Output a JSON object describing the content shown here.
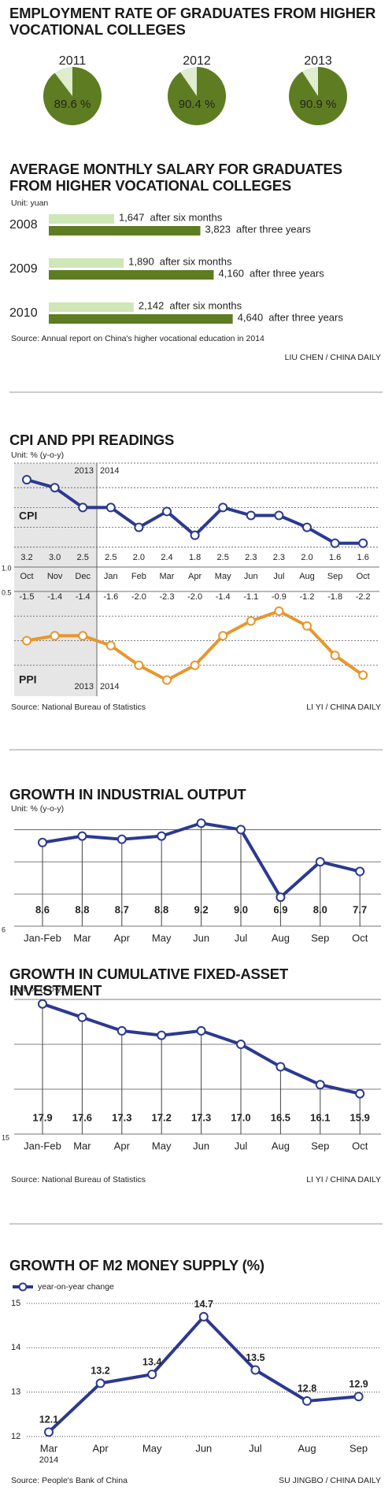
{
  "chart_data": [
    {
      "type": "pie",
      "title": "EMPLOYMENT RATE OF GRADUATES FROM HIGHER VOCATIONAL COLLEGES",
      "categories": [
        "2011",
        "2012",
        "2013"
      ],
      "values": [
        89.6,
        90.4,
        90.9
      ],
      "value_labels": [
        "89.6 %",
        "90.4 %",
        "90.9 %"
      ],
      "color": "#5e7d22",
      "rest_color": "#dfeccf"
    },
    {
      "type": "hbar",
      "title": "AVERAGE MONTHLY SALARY FOR GRADUATES FROM HIGHER VOCATIONAL COLLEGES",
      "unit": "Unit: yuan",
      "categories": [
        "2008",
        "2009",
        "2010"
      ],
      "series": [
        {
          "name": "after six months",
          "color": "#cfe6b6",
          "values": [
            1647,
            1890,
            2142
          ],
          "value_labels": [
            "1,647",
            "1,890",
            "2,142"
          ]
        },
        {
          "name": "after three years",
          "color": "#5e7d22",
          "values": [
            3823,
            4160,
            4640
          ],
          "value_labels": [
            "3,823",
            "4,160",
            "4,640"
          ]
        }
      ],
      "xlim": [
        0,
        8400
      ],
      "source": "Source: Annual report on China's higher vocational education in 2014",
      "credit": "LIU CHEN / CHINA DAILY"
    },
    {
      "type": "line",
      "title": "CPI AND PPI READINGS",
      "unit": "Unit: % (y-o-y)",
      "categories": [
        "Oct",
        "Nov",
        "Dec",
        "Jan",
        "Feb",
        "Mar",
        "Apr",
        "May",
        "Jun",
        "Jul",
        "Aug",
        "Sep",
        "Oct"
      ],
      "years": [
        "2013",
        "2014"
      ],
      "series": [
        {
          "name": "CPI",
          "color": "#2b3990",
          "values": [
            3.2,
            3.0,
            2.5,
            2.5,
            2.0,
            2.4,
            1.8,
            2.5,
            2.3,
            2.3,
            2.0,
            1.6,
            1.6
          ],
          "value_labels": [
            "3.2",
            "3.0",
            "2.5",
            "2.5",
            "2.0",
            "2.4",
            "1.8",
            "2.5",
            "2.3",
            "2.3",
            "2.0",
            "1.6",
            "1.6"
          ]
        },
        {
          "name": "PPI",
          "color": "#e8962c",
          "axis": "y2",
          "values": [
            -1.5,
            -1.4,
            -1.4,
            -1.6,
            -2.0,
            -2.3,
            -2.0,
            -1.4,
            -1.1,
            -0.9,
            -1.2,
            -1.8,
            -2.2
          ],
          "value_labels": [
            "-1.5",
            "-1.4",
            "-1.4",
            "-1.6",
            "-2.0",
            "-2.3",
            "-2.0",
            "-1.4",
            "-1.1",
            "-0.9",
            "-1.2",
            "-1.8",
            "-2.2"
          ]
        }
      ],
      "ylim": [
        1,
        3.5
      ],
      "yticks": [
        {
          "value": 1,
          "label": "1.0"
        }
      ],
      "ygrid": [
        1.5,
        2,
        2.5,
        3
      ],
      "y2lim": [
        -2.5,
        -0.5
      ],
      "y2ticks": [
        {
          "value": -0.5,
          "label": "0.5"
        }
      ],
      "y2grid": [
        -1,
        -1.5,
        -2
      ],
      "source": "Source: National Bureau of Statistics",
      "credit": "LI YI / CHINA DAILY"
    },
    {
      "type": "line",
      "title": "GROWTH IN INDUSTRIAL OUTPUT",
      "unit": "Unit: % (y-o-y)",
      "categories": [
        "Jan-Feb",
        "Mar",
        "Apr",
        "May",
        "Jun",
        "Jul",
        "Aug",
        "Sep",
        "Oct"
      ],
      "values": [
        8.6,
        8.8,
        8.7,
        8.8,
        9.2,
        9.0,
        6.9,
        8.0,
        7.7
      ],
      "value_labels": [
        "8.6",
        "8.8",
        "8.7",
        "8.8",
        "9.2",
        "9.0",
        "6.9",
        "8.0",
        "7.7"
      ],
      "color": "#2b3990",
      "ylim": [
        6,
        9.5
      ],
      "yticks": [
        6
      ],
      "ygrid": [
        7,
        8,
        9
      ],
      "drop_lines": true
    },
    {
      "type": "line",
      "title": "GROWTH IN CUMULATIVE FIXED-ASSET INVESTMENT",
      "unit": "Unit: % (y-o-y)",
      "categories": [
        "Jan-Feb",
        "Mar",
        "Apr",
        "May",
        "Jun",
        "Jul",
        "Aug",
        "Sep",
        "Oct"
      ],
      "values": [
        17.9,
        17.6,
        17.3,
        17.2,
        17.3,
        17.0,
        16.5,
        16.1,
        15.9
      ],
      "value_labels": [
        "17.9",
        "17.6",
        "17.3",
        "17.2",
        "17.3",
        "17.0",
        "16.5",
        "16.1",
        "15.9"
      ],
      "color": "#2b3990",
      "ylim": [
        15,
        18
      ],
      "yticks": [
        15
      ],
      "ygrid": [
        16,
        17,
        18
      ],
      "drop_lines": true,
      "source": "Source: National Bureau of Statistics",
      "credit": "LI YI / CHINA DAILY"
    },
    {
      "type": "line",
      "title": "GROWTH OF M2 MONEY SUPPLY (%)",
      "categories": [
        "Mar",
        "Apr",
        "May",
        "Jun",
        "Jul",
        "Aug",
        "Sep"
      ],
      "start_year": "2014",
      "series": [
        {
          "name": "year-on-year change",
          "color": "#2b3990",
          "values": [
            12.1,
            13.2,
            13.4,
            14.7,
            13.5,
            12.8,
            12.9
          ]
        }
      ],
      "ylim": [
        12,
        15
      ],
      "yticks": [
        12,
        13,
        14,
        15
      ],
      "grid": true,
      "legend": "top-left",
      "source": "Source: People's Bank of China",
      "credit": "SU JINGBO / CHINA DAILY"
    }
  ]
}
